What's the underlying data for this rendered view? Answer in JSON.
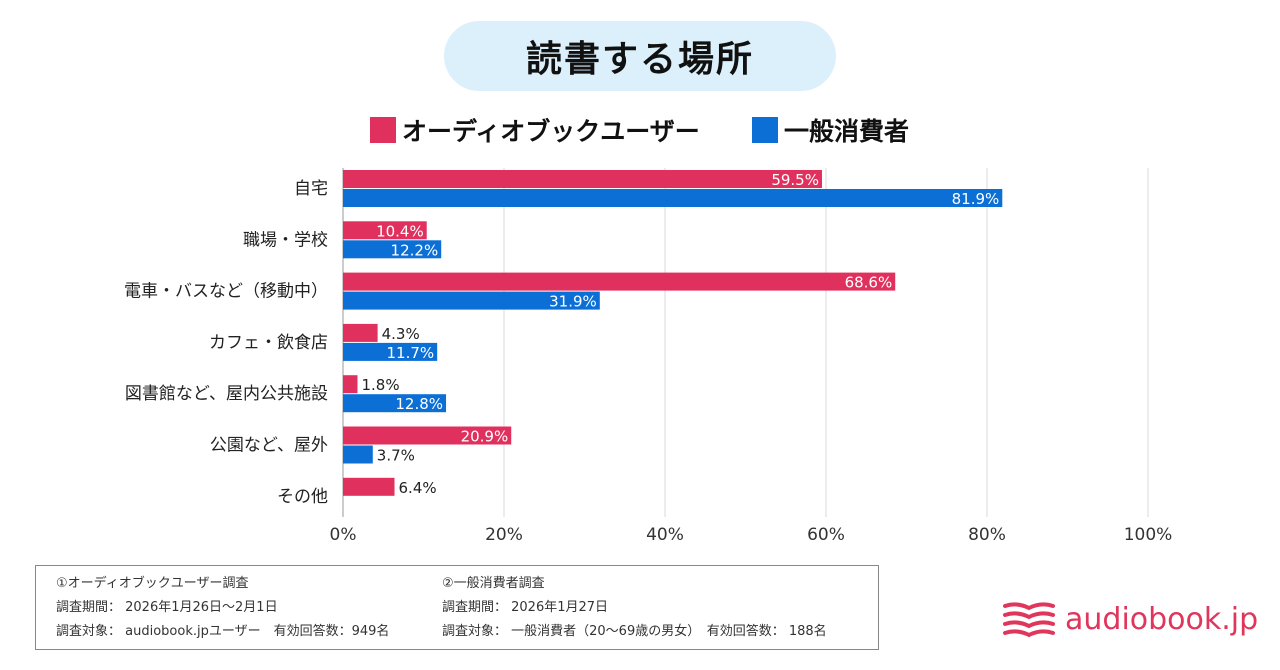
{
  "title": "読書する場所",
  "colors": {
    "audiobook": "#e0315e",
    "general": "#0b6fd6",
    "brand": "#e0365b",
    "title_bg": "#dcf0fb"
  },
  "legend": [
    {
      "label": "オーディオブックユーザー",
      "color": "#e0315e"
    },
    {
      "label": "一般消費者",
      "color": "#0b6fd6"
    }
  ],
  "chart_data": {
    "type": "bar",
    "orientation": "horizontal",
    "categories": [
      "自宅",
      "職場・学校",
      "電車・バスなど（移動中）",
      "カフェ・飲食店",
      "図書館など、屋内公共施設",
      "公園など、屋外",
      "その他"
    ],
    "series": [
      {
        "name": "オーディオブックユーザー",
        "color": "#e0315e",
        "values": [
          59.5,
          10.4,
          68.6,
          4.3,
          1.8,
          20.9,
          6.4
        ]
      },
      {
        "name": "一般消費者",
        "color": "#0b6fd6",
        "values": [
          81.9,
          12.2,
          31.9,
          11.7,
          12.8,
          3.7,
          null
        ]
      }
    ],
    "value_labels": [
      [
        "59.5%",
        "10.4%",
        "68.6%",
        "4.3%",
        "1.8%",
        "20.9%",
        "6.4%"
      ],
      [
        "81.9%",
        "12.2%",
        "31.9%",
        "11.7%",
        "12.8%",
        "3.7%",
        ""
      ]
    ],
    "xlim": [
      0,
      100
    ],
    "xticks": [
      0,
      20,
      40,
      60,
      80,
      100
    ],
    "xtick_labels": [
      "0%",
      "20%",
      "40%",
      "60%",
      "80%",
      "100%"
    ],
    "grid": true
  },
  "notes": {
    "left": [
      "①オーディオブックユーザー調査",
      "調査期間： 2026年1月26日〜2月1日",
      "調査対象： audiobook.jpユーザー　有効回答数：949名"
    ],
    "right": [
      "②一般消費者調査",
      "調査期間： 2026年1月27日",
      "調査対象： 一般消費者（20〜69歳の男女）　有効回答数： 188名"
    ]
  },
  "brand": {
    "name": "audiobook.jp",
    "icon": "open-book-icon"
  }
}
